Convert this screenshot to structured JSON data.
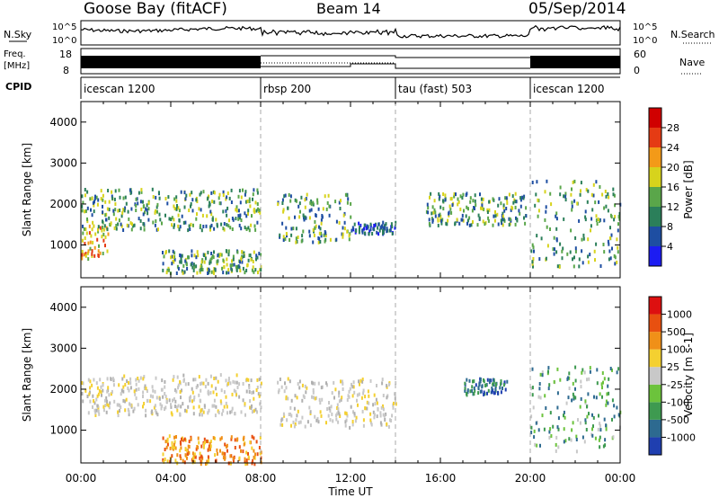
{
  "header": {
    "station": "Goose Bay (fitACF)",
    "beam": "Beam 14",
    "date": "05/Sep/2014"
  },
  "side_labels": {
    "nsky": "N.Sky",
    "nsearch": "N.Search",
    "freq_line1": "Freq.",
    "freq_line2": "[MHz]",
    "nave": "Nave",
    "cpid": "CPID"
  },
  "noise_axis": {
    "top": "10^5",
    "bottom": "10^0",
    "right_top": "10^5",
    "right_bottom": "10^0"
  },
  "freq_axis": {
    "left_ticks": [
      "18",
      "8"
    ],
    "right_ticks": [
      "60",
      "0"
    ]
  },
  "cpid_segments": [
    {
      "label": "icescan 1200",
      "start_hour": 0,
      "end_hour": 8
    },
    {
      "label": "rbsp 200",
      "start_hour": 8,
      "end_hour": 14
    },
    {
      "label": "tau (fast) 503",
      "start_hour": 14,
      "end_hour": 20
    },
    {
      "label": "icescan 1200",
      "start_hour": 20,
      "end_hour": 24
    }
  ],
  "xaxis": {
    "label": "Time UT",
    "ticks": [
      "00:00",
      "04:00",
      "08:00",
      "12:00",
      "16:00",
      "20:00",
      "00:00"
    ]
  },
  "chart_data": [
    {
      "type": "heatmap",
      "name": "power",
      "ylabel": "Slant Range [km]",
      "yticks": [
        "1000",
        "2000",
        "3000",
        "4000"
      ],
      "ylim": [
        200,
        4500
      ],
      "xlim_hours": [
        0,
        24
      ],
      "colorbar_label": "Power [dB]",
      "colorbar_ticks": [
        "4",
        "8",
        "12",
        "16",
        "20",
        "24",
        "28"
      ],
      "colorbar_colors": [
        "#1c1cf2",
        "#1e4ea2",
        "#2b7f5a",
        "#5aa64a",
        "#d7d31c",
        "#f39a18",
        "#e53b14",
        "#d00000"
      ],
      "regions": [
        {
          "t0": 0.0,
          "t1": 1.2,
          "r0": 700,
          "r1": 1500,
          "dominant": "orange"
        },
        {
          "t0": 0.0,
          "t1": 8.0,
          "r0": 1400,
          "r1": 2400,
          "dominant": "green"
        },
        {
          "t0": 3.6,
          "t1": 8.0,
          "r0": 350,
          "r1": 900,
          "dominant": "green"
        },
        {
          "t0": 8.7,
          "t1": 12.0,
          "r0": 1100,
          "r1": 2300,
          "dominant": "green"
        },
        {
          "t0": 12.0,
          "t1": 14.0,
          "r0": 1300,
          "r1": 1600,
          "dominant": "blue"
        },
        {
          "t0": 15.3,
          "t1": 19.8,
          "r0": 1500,
          "r1": 2300,
          "dominant": "green"
        },
        {
          "t0": 20.0,
          "t1": 24.0,
          "r0": 500,
          "r1": 2600,
          "dominant": "green"
        }
      ]
    },
    {
      "type": "heatmap",
      "name": "velocity",
      "ylabel": "Slant Range [km]",
      "yticks": [
        "1000",
        "2000",
        "3000",
        "4000"
      ],
      "ylim": [
        200,
        4500
      ],
      "xlim_hours": [
        0,
        24
      ],
      "colorbar_label": "Velocity [m s-1]",
      "colorbar_ticks": [
        "1000",
        "500",
        "100",
        "25",
        "-25",
        "-100",
        "-500",
        "-1000"
      ],
      "colorbar_colors": [
        "#1f3fb0",
        "#2d6a90",
        "#3e9a50",
        "#6cc33c",
        "#c8c8c8",
        "#f4d030",
        "#f09018",
        "#e85010",
        "#dd1010"
      ],
      "regions": [
        {
          "t0": 0.0,
          "t1": 8.0,
          "r0": 1400,
          "r1": 2400,
          "dominant": "grey"
        },
        {
          "t0": 3.6,
          "t1": 8.0,
          "r0": 200,
          "r1": 900,
          "dominant": "orange"
        },
        {
          "t0": 8.7,
          "t1": 14.0,
          "r0": 1100,
          "r1": 2300,
          "dominant": "grey"
        },
        {
          "t0": 17.0,
          "t1": 19.0,
          "r0": 1900,
          "r1": 2300,
          "dominant": "blue"
        },
        {
          "t0": 20.0,
          "t1": 24.0,
          "r0": 500,
          "r1": 2600,
          "dominant": "green"
        }
      ]
    }
  ]
}
